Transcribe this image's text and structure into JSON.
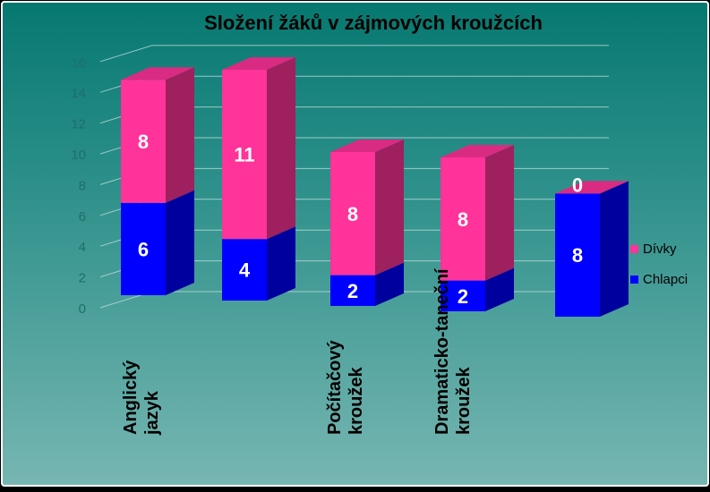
{
  "chart_data": {
    "type": "bar",
    "stacked": true,
    "three_d": true,
    "title": "Složení žáků v zájmových kroužcích",
    "categories": [
      [
        "Anglický",
        "jazyk"
      ],
      [],
      [
        "Počítačový",
        "kroužek"
      ],
      [
        "Dramaticko-taneční",
        "kroužek"
      ],
      []
    ],
    "series": [
      {
        "name": "Chlapci",
        "values": [
          6,
          4,
          2,
          2,
          8
        ],
        "color": "#0000ff"
      },
      {
        "name": "Dívky",
        "values": [
          8,
          11,
          8,
          8,
          0
        ],
        "color": "#ff3399"
      }
    ],
    "yticks": [
      "0",
      "2",
      "4",
      "6",
      "8",
      "10",
      "12",
      "14",
      "16"
    ],
    "ylim": [
      0,
      16
    ],
    "grid": true,
    "legend_position": "right",
    "data_labels": true,
    "colors": {
      "background_top": "#0b7a72",
      "background_bottom": "#6fb2ae",
      "border": "#ffffff"
    }
  }
}
